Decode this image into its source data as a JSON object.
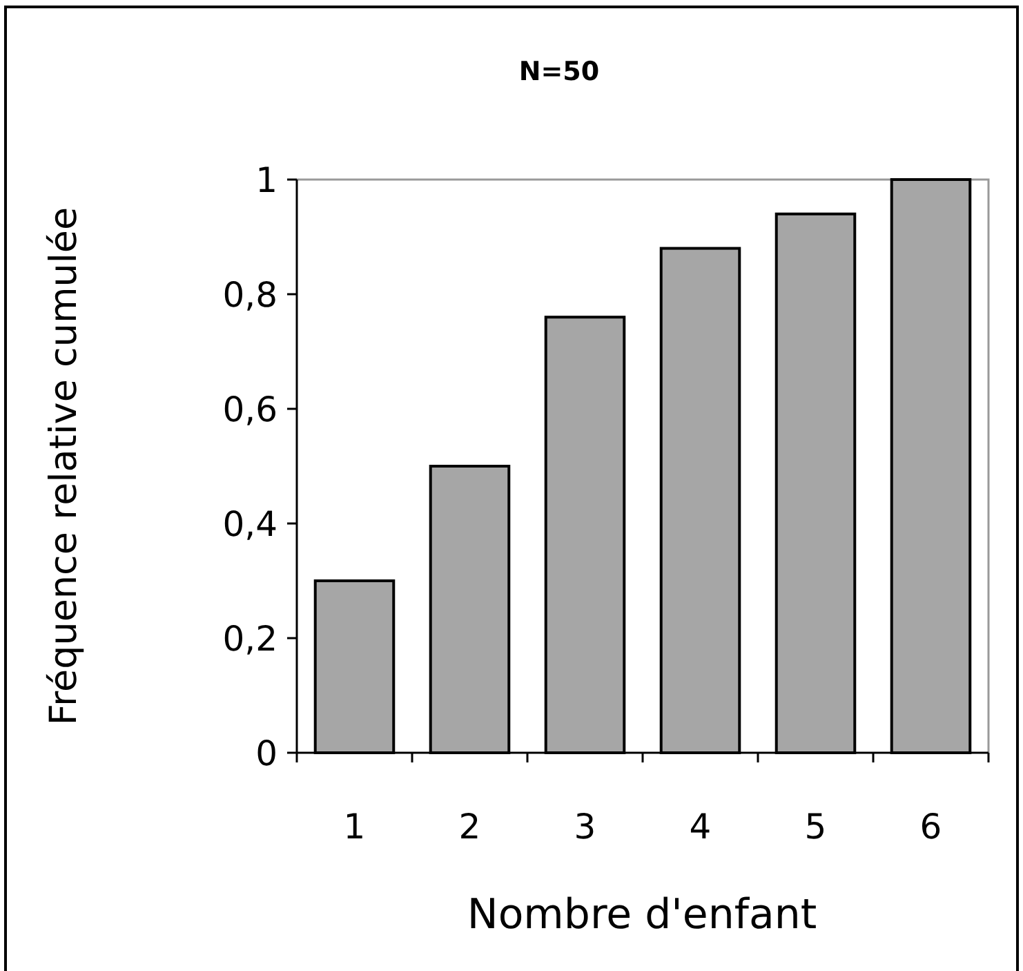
{
  "chart_data": {
    "type": "bar",
    "title": "N=50",
    "xlabel": "Nombre d'enfant",
    "ylabel": "Fréquence relative cumulée",
    "categories": [
      "1",
      "2",
      "3",
      "4",
      "5",
      "6"
    ],
    "values": [
      0.3,
      0.5,
      0.76,
      0.88,
      0.94,
      1
    ],
    "color": "#a6a6a6",
    "ylim": [
      0,
      1
    ],
    "yticks": [
      {
        "value": 0,
        "label": "0"
      },
      {
        "value": 0.2,
        "label": "0,2"
      },
      {
        "value": 0.4,
        "label": "0,4"
      },
      {
        "value": 0.6,
        "label": "0,6"
      },
      {
        "value": 0.8,
        "label": "0,8"
      },
      {
        "value": 1,
        "label": "1"
      }
    ],
    "grid": false
  }
}
